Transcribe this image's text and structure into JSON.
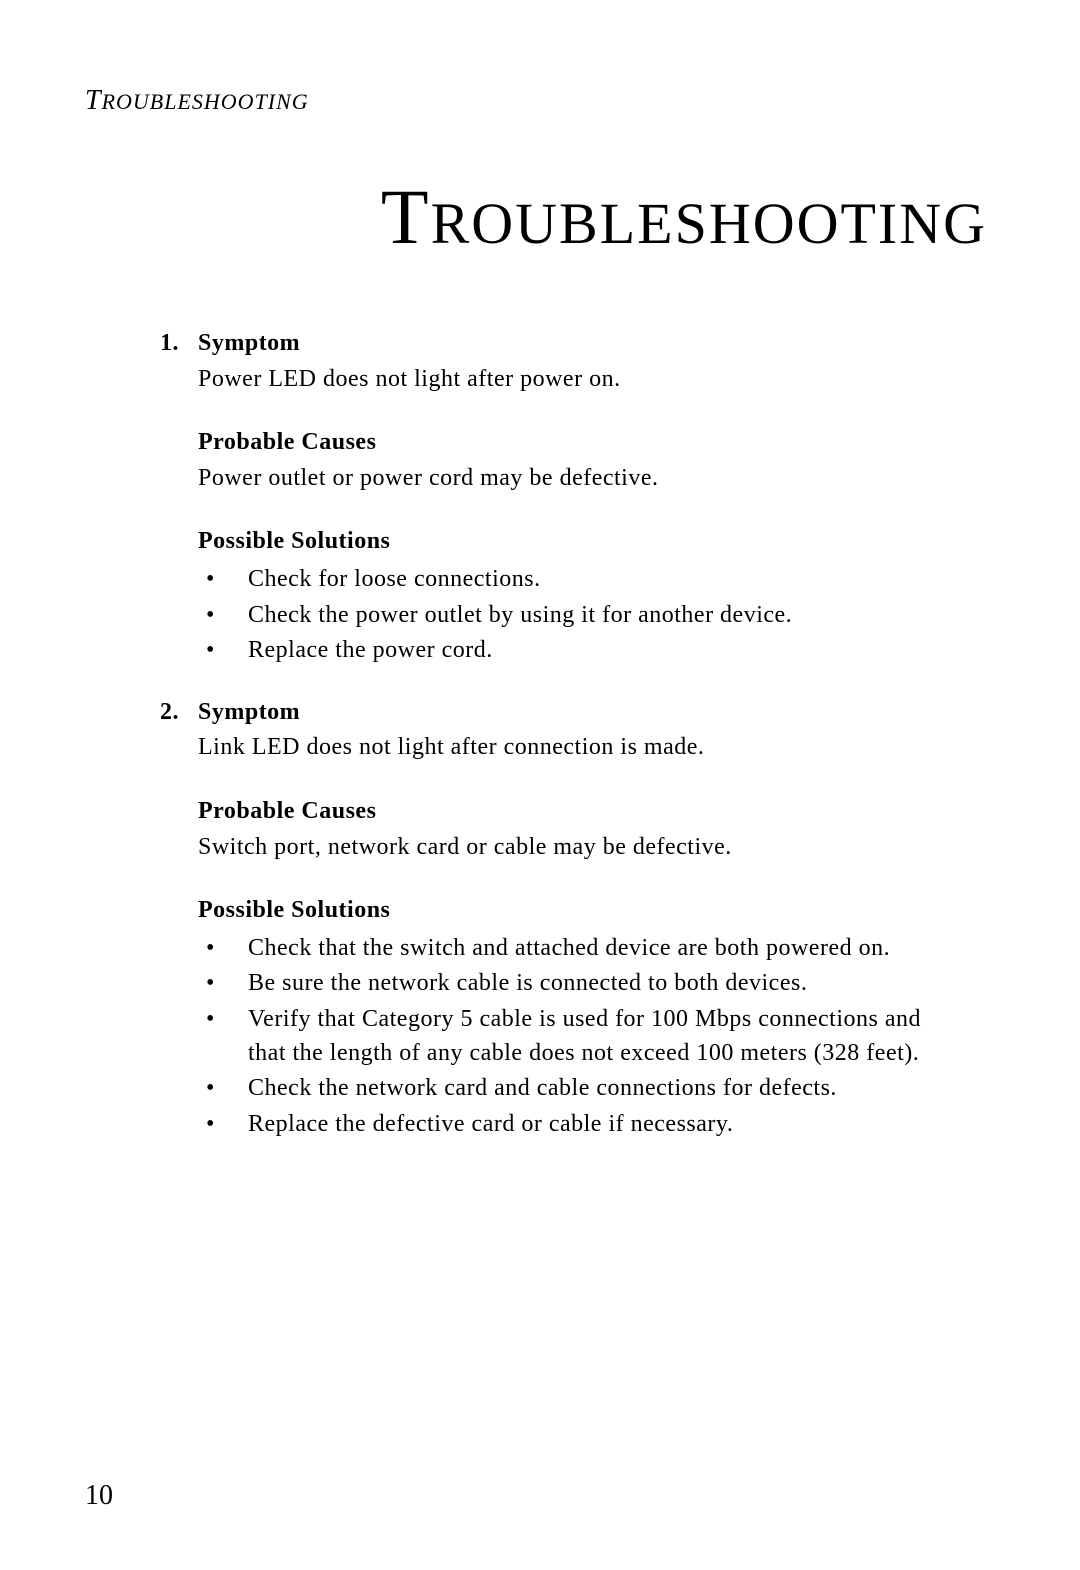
{
  "page": {
    "running_head": "ROUBLESHOOTING",
    "running_head_cap": "T",
    "title_cap": "T",
    "title_rest": "ROUBLESHOOTING",
    "page_number": "10",
    "background_color": "#ffffff",
    "text_color": "#000000",
    "body_fontsize": 24,
    "title_fontsize": 58
  },
  "items": {
    "0": {
      "num": "1.",
      "symptom_label": "Symptom",
      "symptom_text": "Power LED does not light after power on.",
      "causes_label": "Probable Causes",
      "causes_text": "Power outlet or power cord may be defective.",
      "solutions_label": "Possible Solutions",
      "solutions": {
        "0": "Check for loose connections.",
        "1": "Check the power outlet by using it for another device.",
        "2": "Replace the power cord."
      }
    },
    "1": {
      "num": "2.",
      "symptom_label": "Symptom",
      "symptom_text": "Link LED does not light after connection is made.",
      "causes_label": "Probable Causes",
      "causes_text": "Switch port, network card or cable may be defective.",
      "solutions_label": "Possible Solutions",
      "solutions": {
        "0": "Check that the switch and attached device are both powered on.",
        "1": "Be sure the network cable is connected to both devices.",
        "2": "Verify that Category 5 cable is used for 100 Mbps connections and that the length of any cable does not exceed 100 meters (328 feet).",
        "3": "Check the network card and cable connections for defects.",
        "4": "Replace the defective card or cable if necessary."
      }
    }
  }
}
